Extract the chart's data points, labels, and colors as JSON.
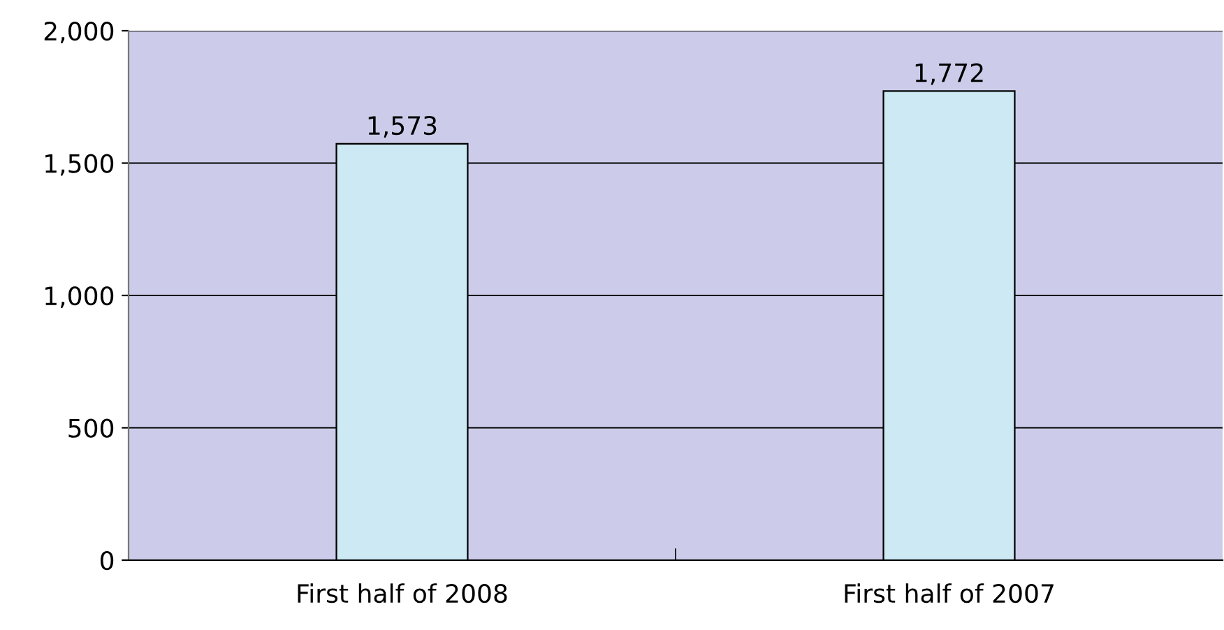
{
  "chart_data": {
    "type": "bar",
    "categories": [
      "First half of 2008",
      "First half of 2007"
    ],
    "values": [
      1573,
      1772
    ],
    "color": "#cce9f4",
    "value_labels": [
      "1,573",
      "1,772"
    ],
    "ylim": [
      0,
      2000
    ],
    "yticks": [
      0,
      {
        "value": 500,
        "label": "500"
      },
      {
        "value": 1000,
        "label": "1,000"
      },
      {
        "value": 1500,
        "label": "1,500"
      },
      {
        "value": 2000,
        "label": "2,000"
      }
    ],
    "grid": "y"
  }
}
